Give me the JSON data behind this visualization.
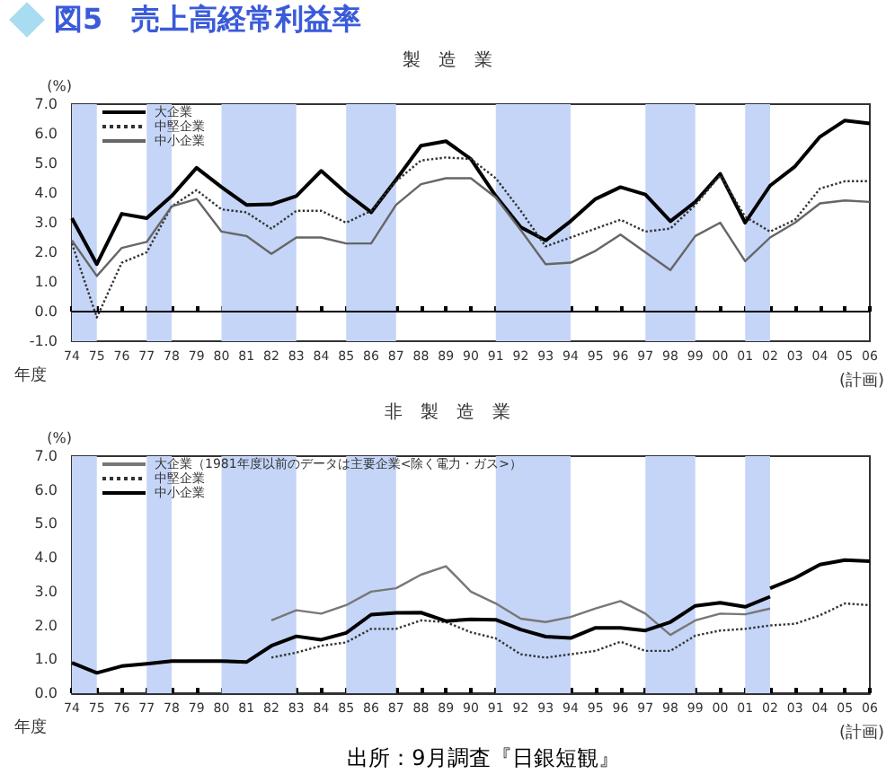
{
  "chart_data": [
    {
      "type": "line",
      "title": "図5　売上高経常利益率",
      "subtitle": "製　造　業",
      "ylabel": "(%)",
      "xlabel": "年度",
      "annotations": [
        "(計画)"
      ],
      "categories": [
        "74",
        "75",
        "76",
        "77",
        "78",
        "79",
        "80",
        "81",
        "82",
        "83",
        "84",
        "85",
        "86",
        "87",
        "88",
        "89",
        "90",
        "91",
        "92",
        "93",
        "94",
        "95",
        "96",
        "97",
        "98",
        "99",
        "00",
        "01",
        "02",
        "03",
        "04",
        "05",
        "06"
      ],
      "series": [
        {
          "name": "大企業",
          "color": "#000000",
          "values": [
            3.15,
            1.6,
            3.3,
            3.15,
            3.9,
            4.85,
            4.2,
            3.6,
            3.62,
            3.9,
            4.75,
            4.0,
            3.35,
            4.45,
            5.6,
            5.75,
            5.15,
            3.9,
            2.85,
            2.4,
            3.05,
            3.8,
            4.2,
            3.95,
            3.05,
            3.7,
            4.65,
            3.0,
            4.25,
            4.9,
            5.9,
            6.45,
            6.35
          ]
        },
        {
          "name": "中堅企業",
          "color": "#333333",
          "line_style": "dotted",
          "values": [
            2.3,
            -0.2,
            1.65,
            2.0,
            3.55,
            4.1,
            3.45,
            3.35,
            2.8,
            3.4,
            3.4,
            3.0,
            3.4,
            4.4,
            5.1,
            5.2,
            5.15,
            4.5,
            3.4,
            2.2,
            2.5,
            2.8,
            3.1,
            2.7,
            2.8,
            3.6,
            4.6,
            3.2,
            2.7,
            3.1,
            4.15,
            4.4,
            4.4
          ]
        },
        {
          "name": "中小企業",
          "color": "#666666",
          "values": [
            2.4,
            1.2,
            2.15,
            2.35,
            3.55,
            3.8,
            2.7,
            2.55,
            1.95,
            2.5,
            2.5,
            2.3,
            2.3,
            3.6,
            4.3,
            4.5,
            4.5,
            3.85,
            2.75,
            1.6,
            1.65,
            2.05,
            2.6,
            2.0,
            1.4,
            2.55,
            3.0,
            1.7,
            2.5,
            3.0,
            3.65,
            3.75,
            3.7
          ]
        }
      ],
      "ylim": [
        -1,
        7
      ],
      "yticks": [
        {
          "value": -1,
          "label": "-1.0"
        },
        {
          "value": 0,
          "label": "0.0"
        },
        {
          "value": 1,
          "label": "1.0"
        },
        {
          "value": 2,
          "label": "2.0"
        },
        {
          "value": 3,
          "label": "3.0"
        },
        {
          "value": 4,
          "label": "4.0"
        },
        {
          "value": 5,
          "label": "5.0"
        },
        {
          "value": 6,
          "label": "6.0"
        },
        {
          "value": 7,
          "label": "7.0"
        }
      ],
      "ref_lines": [
        {
          "axis": "y",
          "value": 0,
          "color": "#000000"
        }
      ],
      "bands": [
        {
          "axis": "x",
          "from": "74",
          "to": "75",
          "color": "#c5d5f7"
        },
        {
          "axis": "x",
          "from": "77",
          "to": "78",
          "color": "#c5d5f7"
        },
        {
          "axis": "x",
          "from": "80",
          "to": "83",
          "color": "#c5d5f7"
        },
        {
          "axis": "x",
          "from": "85",
          "to": "87",
          "color": "#c5d5f7"
        },
        {
          "axis": "x",
          "from": "91",
          "to": "94",
          "color": "#c5d5f7"
        },
        {
          "axis": "x",
          "from": "97",
          "to": "99",
          "color": "#c5d5f7"
        },
        {
          "axis": "x",
          "from": "01",
          "to": "02",
          "color": "#c5d5f7"
        }
      ],
      "legend": "top left",
      "marker": "none",
      "grid": false
    },
    {
      "type": "line",
      "title": "非　製　造　業",
      "ylabel": "(%)",
      "xlabel": "年度",
      "annotations": [
        "(計画)",
        "出所：9月調査『日銀短観』"
      ],
      "categories": [
        "74",
        "75",
        "76",
        "77",
        "78",
        "79",
        "80",
        "81",
        "82",
        "83",
        "84",
        "85",
        "86",
        "87",
        "88",
        "89",
        "90",
        "91",
        "92",
        "93",
        "94",
        "95",
        "96",
        "97",
        "98",
        "99",
        "00",
        "01",
        "02",
        "03",
        "04",
        "05",
        "06"
      ],
      "series": [
        {
          "name": "大企業（1981年度以前のデータは主要企業<除く電力・ガス>）",
          "color": "#777777",
          "values": [
            null,
            null,
            null,
            null,
            null,
            null,
            null,
            null,
            2.15,
            2.45,
            2.35,
            2.6,
            3.0,
            3.1,
            3.5,
            3.75,
            3.0,
            2.65,
            2.2,
            2.1,
            2.25,
            2.5,
            2.72,
            2.35,
            1.72,
            2.15,
            2.35,
            2.33,
            2.5,
            null,
            null,
            null,
            null
          ]
        },
        {
          "name": "中堅企業",
          "color": "#333333",
          "line_style": "dotted",
          "values": [
            null,
            null,
            null,
            null,
            null,
            null,
            null,
            null,
            1.05,
            1.2,
            1.4,
            1.5,
            1.9,
            1.9,
            2.15,
            2.1,
            1.8,
            1.62,
            1.15,
            1.05,
            1.15,
            1.25,
            1.52,
            1.25,
            1.25,
            1.7,
            1.85,
            1.9,
            2.0,
            2.05,
            2.3,
            2.65,
            2.6
          ]
        },
        {
          "name": "中小企業",
          "color": "#000000",
          "values": [
            0.9,
            0.6,
            0.8,
            0.87,
            0.95,
            0.95,
            0.95,
            0.92,
            1.4,
            1.68,
            1.58,
            1.78,
            2.32,
            2.37,
            2.38,
            2.13,
            2.18,
            2.17,
            1.88,
            1.67,
            1.63,
            1.93,
            1.93,
            1.85,
            2.1,
            2.58,
            2.67,
            2.55,
            2.85,
            null,
            null,
            null,
            null
          ]
        },
        {
          "color": "#000000",
          "values": [
            null,
            null,
            null,
            null,
            null,
            null,
            null,
            null,
            null,
            null,
            null,
            null,
            null,
            null,
            null,
            null,
            null,
            null,
            null,
            null,
            null,
            null,
            null,
            null,
            null,
            null,
            null,
            null,
            3.1,
            3.4,
            3.8,
            3.93,
            3.9
          ]
        }
      ],
      "ylim": [
        0,
        7
      ],
      "yticks": [
        {
          "value": 0,
          "label": "0.0"
        },
        {
          "value": 1,
          "label": "1.0"
        },
        {
          "value": 2,
          "label": "2.0"
        },
        {
          "value": 3,
          "label": "3.0"
        },
        {
          "value": 4,
          "label": "4.0"
        },
        {
          "value": 5,
          "label": "5.0"
        },
        {
          "value": 6,
          "label": "6.0"
        },
        {
          "value": 7,
          "label": "7.0"
        }
      ],
      "bands": [
        {
          "axis": "x",
          "from": "74",
          "to": "75",
          "color": "#c5d5f7"
        },
        {
          "axis": "x",
          "from": "77",
          "to": "78",
          "color": "#c5d5f7"
        },
        {
          "axis": "x",
          "from": "80",
          "to": "83",
          "color": "#c5d5f7"
        },
        {
          "axis": "x",
          "from": "85",
          "to": "87",
          "color": "#c5d5f7"
        },
        {
          "axis": "x",
          "from": "91",
          "to": "94",
          "color": "#c5d5f7"
        },
        {
          "axis": "x",
          "from": "97",
          "to": "99",
          "color": "#c5d5f7"
        },
        {
          "axis": "x",
          "from": "01",
          "to": "02",
          "color": "#c5d5f7"
        }
      ],
      "legend": "top left",
      "marker": "none",
      "grid": false
    }
  ]
}
